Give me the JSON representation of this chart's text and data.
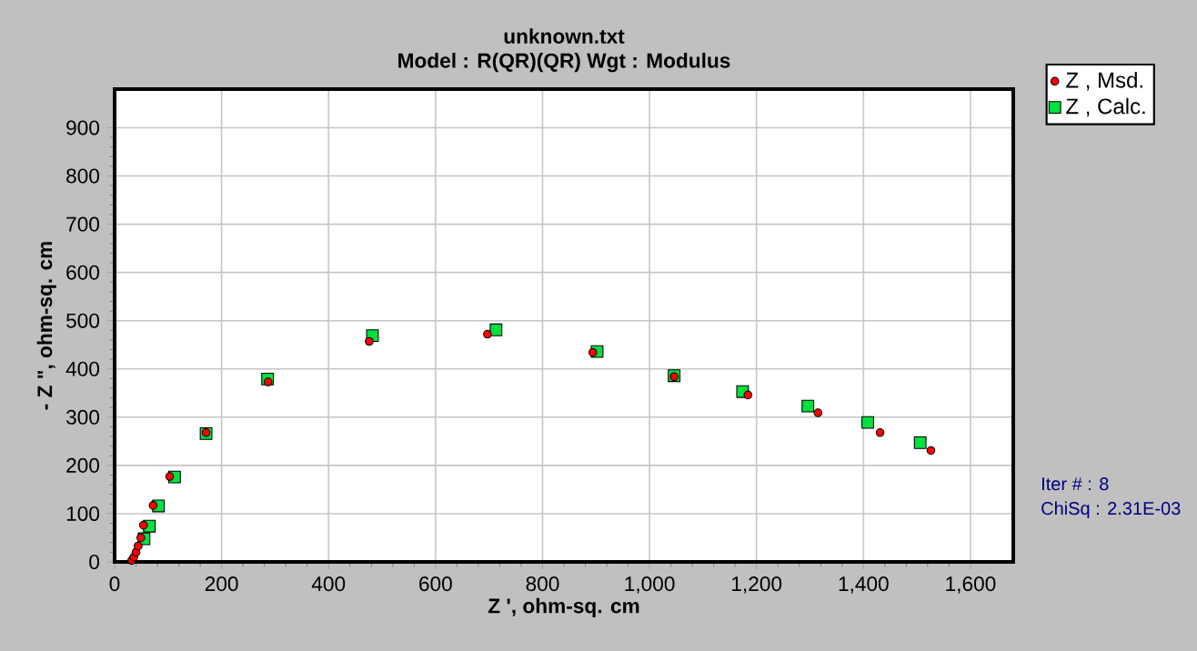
{
  "chart_data": {
    "type": "scatter",
    "title": "unknown.txt",
    "subtitle": "Model : R(QR)(QR)     Wgt : Modulus",
    "xlabel": "Z ', ohm-sq. cm",
    "ylabel": "- Z \", ohm-sq. cm",
    "series": [
      {
        "name": "Z , Msd.",
        "color": "#ff0000",
        "marker": "circle",
        "x": [
          32,
          36,
          40,
          44,
          49,
          54,
          72,
          103,
          171,
          287,
          476,
          697,
          894,
          1046,
          1184,
          1315,
          1431,
          1526
        ],
        "values": [
          3,
          10,
          20,
          33,
          50,
          76,
          117,
          177,
          268,
          373,
          457,
          472,
          434,
          384,
          346,
          309,
          268,
          231
        ]
      },
      {
        "name": "Z , Calc.",
        "color": "#00e040",
        "marker": "square",
        "x": [
          55,
          65,
          82,
          112,
          171,
          286,
          482,
          713,
          902,
          1046,
          1174,
          1296,
          1408,
          1506
        ],
        "values": [
          48,
          74,
          116,
          176,
          266,
          379,
          469,
          481,
          436,
          386,
          353,
          323,
          289,
          247
        ]
      }
    ],
    "xlim": [
      0,
      1680
    ],
    "ylim": [
      0,
      980
    ],
    "xticks": [
      0,
      200,
      400,
      600,
      800,
      {
        "value": 1000,
        "label": "1,000"
      },
      {
        "value": 1200,
        "label": "1,200"
      },
      {
        "value": 1400,
        "label": "1,400"
      },
      {
        "value": 1600,
        "label": "1,600"
      }
    ],
    "yticks": [
      0,
      100,
      200,
      300,
      400,
      500,
      600,
      700,
      800,
      900
    ],
    "grid": true,
    "legend": "top right",
    "annotations": [
      "Iter # :  8",
      "ChiSq : 2.31E-03"
    ]
  }
}
